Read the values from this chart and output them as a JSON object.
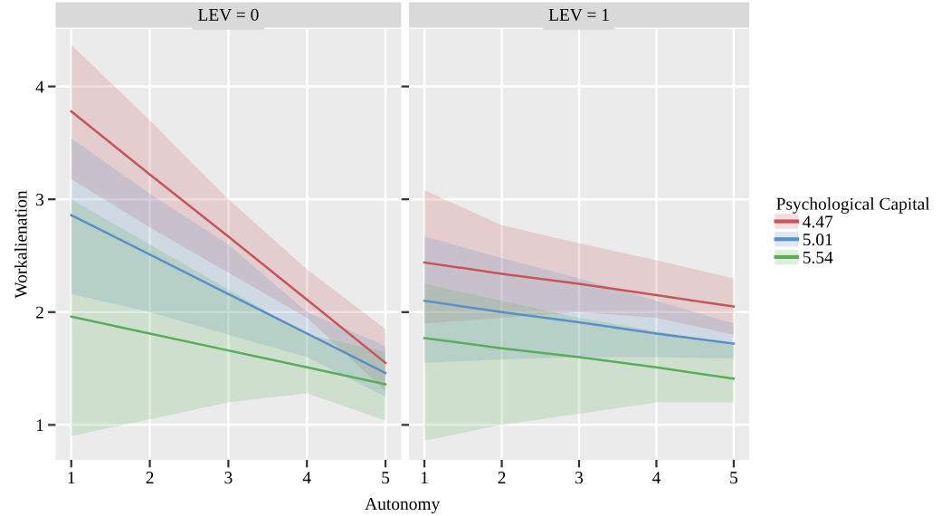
{
  "chart_data": [
    {
      "type": "line",
      "title": "LEV = 0",
      "xlabel": "Autonomy",
      "ylabel": "Workalienation",
      "legend_title": "Psychological Capital",
      "x": [
        1,
        2,
        3,
        4,
        5
      ],
      "xlim": [
        0.8,
        5.2
      ],
      "ylim": [
        0.69,
        4.51
      ],
      "xticks": [
        1,
        2,
        3,
        4,
        5
      ],
      "yticks": [
        1,
        2,
        3,
        4
      ],
      "grid": true,
      "legend": "right",
      "series": [
        {
          "name": "4.47",
          "color": "#c8555a",
          "values": [
            3.78,
            3.22,
            2.67,
            2.11,
            1.55
          ],
          "lower": [
            3.18,
            2.75,
            2.35,
            1.95,
            1.3
          ],
          "upper": [
            4.37,
            3.7,
            3.0,
            2.38,
            1.85
          ]
        },
        {
          "name": "5.01",
          "color": "#5b8fc7",
          "values": [
            2.86,
            2.51,
            2.16,
            1.81,
            1.46
          ],
          "lower": [
            2.16,
            2.0,
            1.8,
            1.6,
            1.25
          ],
          "upper": [
            3.54,
            3.05,
            2.6,
            2.0,
            1.7
          ]
        },
        {
          "name": "5.54",
          "color": "#5aad5a",
          "values": [
            1.96,
            1.81,
            1.66,
            1.51,
            1.36
          ],
          "lower": [
            0.9,
            1.05,
            1.2,
            1.28,
            1.04
          ],
          "upper": [
            3.0,
            2.6,
            2.2,
            1.8,
            1.65
          ]
        }
      ]
    },
    {
      "type": "line",
      "title": "LEV = 1",
      "x": [
        1,
        2,
        3,
        4,
        5
      ],
      "xlim": [
        0.8,
        5.2
      ],
      "ylim": [
        0.69,
        4.51
      ],
      "xticks": [
        1,
        2,
        3,
        4,
        5
      ],
      "yticks": [
        1,
        2,
        3,
        4
      ],
      "tick_labels": "x",
      "grid": true,
      "series": [
        {
          "name": "4.47",
          "color": "#c8555a",
          "values": [
            2.44,
            2.34,
            2.25,
            2.15,
            2.05
          ],
          "lower": [
            1.9,
            1.95,
            2.0,
            1.95,
            1.8
          ],
          "upper": [
            3.08,
            2.77,
            2.61,
            2.46,
            2.3
          ]
        },
        {
          "name": "5.01",
          "color": "#5b8fc7",
          "values": [
            2.1,
            2.0,
            1.91,
            1.81,
            1.72
          ],
          "lower": [
            1.55,
            1.58,
            1.6,
            1.6,
            1.59
          ],
          "upper": [
            2.67,
            2.48,
            2.3,
            2.1,
            1.9
          ]
        },
        {
          "name": "5.54",
          "color": "#5aad5a",
          "values": [
            1.77,
            1.68,
            1.6,
            1.51,
            1.41
          ],
          "lower": [
            0.86,
            1.0,
            1.1,
            1.2,
            1.2
          ],
          "upper": [
            2.25,
            2.1,
            1.95,
            1.83,
            1.72
          ]
        }
      ]
    }
  ]
}
